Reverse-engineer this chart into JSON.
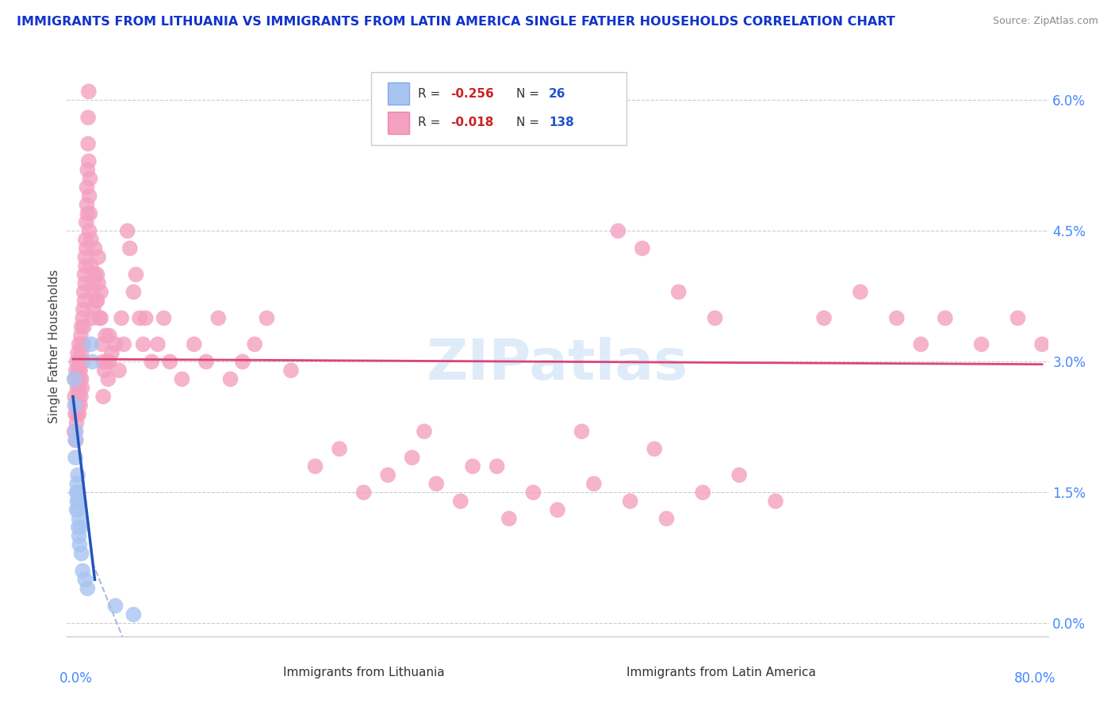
{
  "title": "IMMIGRANTS FROM LITHUANIA VS IMMIGRANTS FROM LATIN AMERICA SINGLE FATHER HOUSEHOLDS CORRELATION CHART",
  "source": "Source: ZipAtlas.com",
  "ylabel": "Single Father Households",
  "ytick_values": [
    0.0,
    1.5,
    3.0,
    4.5,
    6.0
  ],
  "xmin": 0.0,
  "xmax": 80.0,
  "ymin": 0.0,
  "ymax": 6.5,
  "legend_r_blue": "-0.256",
  "legend_n_blue": "26",
  "legend_r_pink": "-0.018",
  "legend_n_pink": "138",
  "watermark": "ZIPatlas",
  "blue_color": "#a8c4f0",
  "pink_color": "#f4a0c0",
  "trendline_blue_solid": "#2255bb",
  "trendline_blue_dashed": "#aabbdd",
  "trendline_pink": "#dd4477",
  "grid_color": "#cccccc",
  "title_color": "#1133cc",
  "source_color": "#888888",
  "axis_label_color": "#4488ff",
  "legend_box_color": "#dddddd",
  "blue_label": "Immigrants from Lithuania",
  "pink_label": "Immigrants from Latin America",
  "blue_scatter": [
    [
      0.1,
      2.8
    ],
    [
      0.15,
      2.5
    ],
    [
      0.2,
      2.1
    ],
    [
      0.2,
      1.9
    ],
    [
      0.25,
      2.2
    ],
    [
      0.3,
      1.5
    ],
    [
      0.3,
      1.3
    ],
    [
      0.35,
      1.6
    ],
    [
      0.35,
      1.4
    ],
    [
      0.4,
      1.7
    ],
    [
      0.4,
      1.5
    ],
    [
      0.45,
      1.3
    ],
    [
      0.45,
      1.1
    ],
    [
      0.5,
      1.4
    ],
    [
      0.5,
      1.2
    ],
    [
      0.5,
      1.0
    ],
    [
      0.55,
      0.9
    ],
    [
      0.6,
      1.1
    ],
    [
      0.7,
      0.8
    ],
    [
      0.8,
      0.6
    ],
    [
      1.0,
      0.5
    ],
    [
      1.2,
      0.4
    ],
    [
      1.5,
      3.2
    ],
    [
      1.6,
      3.0
    ],
    [
      3.5,
      0.2
    ],
    [
      5.0,
      0.1
    ]
  ],
  "pink_scatter": [
    [
      0.1,
      2.2
    ],
    [
      0.15,
      2.6
    ],
    [
      0.2,
      2.4
    ],
    [
      0.2,
      2.8
    ],
    [
      0.25,
      2.1
    ],
    [
      0.25,
      2.9
    ],
    [
      0.3,
      2.5
    ],
    [
      0.3,
      3.0
    ],
    [
      0.3,
      2.3
    ],
    [
      0.35,
      2.7
    ],
    [
      0.35,
      2.4
    ],
    [
      0.4,
      2.8
    ],
    [
      0.4,
      2.5
    ],
    [
      0.4,
      3.1
    ],
    [
      0.45,
      2.6
    ],
    [
      0.45,
      2.9
    ],
    [
      0.5,
      2.7
    ],
    [
      0.5,
      3.2
    ],
    [
      0.5,
      2.4
    ],
    [
      0.55,
      2.8
    ],
    [
      0.55,
      3.0
    ],
    [
      0.6,
      2.5
    ],
    [
      0.6,
      2.9
    ],
    [
      0.65,
      3.3
    ],
    [
      0.65,
      2.6
    ],
    [
      0.7,
      3.1
    ],
    [
      0.7,
      2.8
    ],
    [
      0.7,
      3.4
    ],
    [
      0.75,
      2.7
    ],
    [
      0.75,
      3.2
    ],
    [
      0.8,
      3.5
    ],
    [
      0.8,
      3.0
    ],
    [
      0.85,
      3.6
    ],
    [
      0.85,
      3.2
    ],
    [
      0.9,
      3.8
    ],
    [
      0.9,
      3.4
    ],
    [
      0.95,
      4.0
    ],
    [
      0.95,
      3.7
    ],
    [
      1.0,
      4.2
    ],
    [
      1.0,
      3.9
    ],
    [
      1.05,
      4.4
    ],
    [
      1.05,
      4.1
    ],
    [
      1.1,
      4.6
    ],
    [
      1.1,
      4.3
    ],
    [
      1.15,
      4.8
    ],
    [
      1.15,
      5.0
    ],
    [
      1.2,
      5.2
    ],
    [
      1.2,
      4.7
    ],
    [
      1.25,
      5.5
    ],
    [
      1.25,
      5.8
    ],
    [
      1.3,
      6.1
    ],
    [
      1.3,
      5.3
    ],
    [
      1.35,
      4.9
    ],
    [
      1.35,
      4.5
    ],
    [
      1.4,
      5.1
    ],
    [
      1.4,
      4.7
    ],
    [
      1.5,
      4.4
    ],
    [
      1.5,
      4.1
    ],
    [
      1.6,
      3.8
    ],
    [
      1.6,
      3.5
    ],
    [
      1.7,
      3.9
    ],
    [
      1.7,
      3.6
    ],
    [
      1.8,
      4.3
    ],
    [
      1.8,
      4.0
    ],
    [
      1.9,
      3.7
    ],
    [
      2.0,
      4.0
    ],
    [
      2.0,
      3.7
    ],
    [
      2.1,
      4.2
    ],
    [
      2.1,
      3.9
    ],
    [
      2.2,
      3.5
    ],
    [
      2.3,
      3.8
    ],
    [
      2.3,
      3.5
    ],
    [
      2.4,
      3.2
    ],
    [
      2.5,
      2.6
    ],
    [
      2.5,
      3.0
    ],
    [
      2.6,
      2.9
    ],
    [
      2.7,
      3.3
    ],
    [
      2.8,
      3.0
    ],
    [
      2.9,
      2.8
    ],
    [
      3.0,
      3.3
    ],
    [
      3.0,
      3.0
    ],
    [
      3.2,
      3.1
    ],
    [
      3.5,
      3.2
    ],
    [
      3.8,
      2.9
    ],
    [
      4.0,
      3.5
    ],
    [
      4.2,
      3.2
    ],
    [
      4.5,
      4.5
    ],
    [
      4.7,
      4.3
    ],
    [
      5.0,
      3.8
    ],
    [
      5.2,
      4.0
    ],
    [
      5.5,
      3.5
    ],
    [
      5.8,
      3.2
    ],
    [
      6.0,
      3.5
    ],
    [
      6.5,
      3.0
    ],
    [
      7.0,
      3.2
    ],
    [
      7.5,
      3.5
    ],
    [
      8.0,
      3.0
    ],
    [
      9.0,
      2.8
    ],
    [
      10.0,
      3.2
    ],
    [
      11.0,
      3.0
    ],
    [
      12.0,
      3.5
    ],
    [
      13.0,
      2.8
    ],
    [
      14.0,
      3.0
    ],
    [
      15.0,
      3.2
    ],
    [
      16.0,
      3.5
    ],
    [
      18.0,
      2.9
    ],
    [
      20.0,
      1.8
    ],
    [
      22.0,
      2.0
    ],
    [
      24.0,
      1.5
    ],
    [
      26.0,
      1.7
    ],
    [
      28.0,
      1.9
    ],
    [
      30.0,
      1.6
    ],
    [
      32.0,
      1.4
    ],
    [
      35.0,
      1.8
    ],
    [
      38.0,
      1.5
    ],
    [
      40.0,
      1.3
    ],
    [
      43.0,
      1.6
    ],
    [
      46.0,
      1.4
    ],
    [
      49.0,
      1.2
    ],
    [
      52.0,
      1.5
    ],
    [
      55.0,
      1.7
    ],
    [
      58.0,
      1.4
    ],
    [
      62.0,
      3.5
    ],
    [
      65.0,
      3.8
    ],
    [
      68.0,
      3.5
    ],
    [
      70.0,
      3.2
    ],
    [
      72.0,
      3.5
    ],
    [
      75.0,
      3.2
    ],
    [
      78.0,
      3.5
    ],
    [
      80.0,
      3.2
    ],
    [
      45.0,
      4.5
    ],
    [
      47.0,
      4.3
    ],
    [
      50.0,
      3.8
    ],
    [
      53.0,
      3.5
    ],
    [
      48.0,
      2.0
    ],
    [
      42.0,
      2.2
    ],
    [
      36.0,
      1.2
    ],
    [
      33.0,
      1.8
    ],
    [
      29.0,
      2.2
    ]
  ]
}
